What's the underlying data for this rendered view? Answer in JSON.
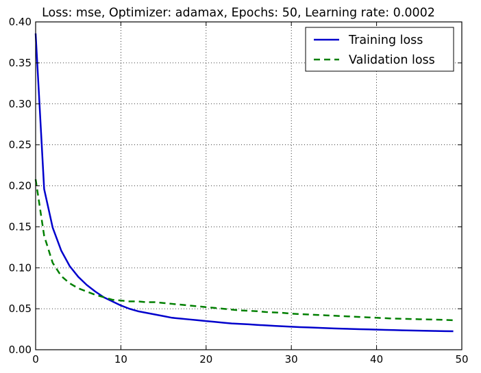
{
  "chart_data": {
    "type": "line",
    "title": "Loss: mse, Optimizer: adamax, Epochs: 50, Learning rate: 0.0002",
    "xlabel": "",
    "ylabel": "",
    "xlim": [
      0,
      50
    ],
    "ylim": [
      0,
      0.4
    ],
    "xticks": [
      "0",
      "10",
      "20",
      "30",
      "40",
      "50"
    ],
    "yticks": [
      "0.00",
      "0.05",
      "0.10",
      "0.15",
      "0.20",
      "0.25",
      "0.30",
      "0.35",
      "0.40"
    ],
    "grid": true,
    "legend_position": "top-right",
    "x": [
      0,
      1,
      2,
      3,
      4,
      5,
      6,
      7,
      8,
      9,
      10,
      11,
      12,
      13,
      14,
      15,
      16,
      17,
      18,
      19,
      20,
      21,
      22,
      23,
      24,
      25,
      26,
      27,
      28,
      29,
      30,
      31,
      32,
      33,
      34,
      35,
      36,
      37,
      38,
      39,
      40,
      41,
      42,
      43,
      44,
      45,
      46,
      47,
      48,
      49
    ],
    "series": [
      {
        "name": "Training loss",
        "color": "#0000cc",
        "style": "solid",
        "values": [
          0.386,
          0.196,
          0.149,
          0.121,
          0.102,
          0.089,
          0.079,
          0.071,
          0.064,
          0.059,
          0.054,
          0.05,
          0.047,
          0.045,
          0.043,
          0.041,
          0.039,
          0.038,
          0.037,
          0.036,
          0.035,
          0.034,
          0.033,
          0.032,
          0.0315,
          0.031,
          0.0303,
          0.0297,
          0.0291,
          0.0286,
          0.0281,
          0.0276,
          0.0272,
          0.0268,
          0.0264,
          0.026,
          0.0257,
          0.0254,
          0.0251,
          0.0248,
          0.0245,
          0.0242,
          0.024,
          0.0237,
          0.0235,
          0.0233,
          0.0231,
          0.0229,
          0.0227,
          0.0225
        ]
      },
      {
        "name": "Validation loss",
        "color": "#007f00",
        "style": "dashed",
        "values": [
          0.208,
          0.139,
          0.106,
          0.09,
          0.081,
          0.075,
          0.071,
          0.067,
          0.064,
          0.061,
          0.06,
          0.059,
          0.059,
          0.058,
          0.058,
          0.057,
          0.056,
          0.055,
          0.054,
          0.053,
          0.052,
          0.051,
          0.05,
          0.049,
          0.048,
          0.0475,
          0.047,
          0.046,
          0.0455,
          0.045,
          0.044,
          0.0435,
          0.043,
          0.0425,
          0.042,
          0.0415,
          0.041,
          0.0405,
          0.04,
          0.0395,
          0.039,
          0.0385,
          0.038,
          0.0378,
          0.0375,
          0.0372,
          0.037,
          0.0367,
          0.0364,
          0.036
        ]
      }
    ]
  }
}
